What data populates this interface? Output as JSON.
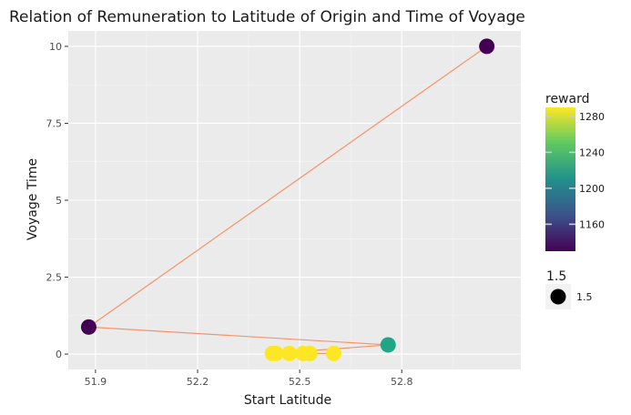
{
  "chart_data": {
    "type": "scatter",
    "title": "Relation of Remuneration to Latitude of Origin and Time of Voyage",
    "xlabel": "Start Latitude",
    "ylabel": "Voyage Time",
    "xlim": [
      51.82,
      53.15
    ],
    "ylim": [
      -0.5,
      10.5
    ],
    "x_ticks": [
      51.9,
      52.2,
      52.5,
      52.8
    ],
    "x_tick_labels": [
      "51.9",
      "52.2",
      "52.5",
      "52.8"
    ],
    "y_ticks": [
      0,
      2.5,
      5,
      7.5,
      10
    ],
    "y_tick_labels": [
      "0",
      "2.5",
      "5",
      "7.5",
      "10"
    ],
    "grid": true,
    "path_color": "#f4946c",
    "points": [
      {
        "x": 53.05,
        "y": 10.0,
        "reward": 1135,
        "color": "#440154"
      },
      {
        "x": 51.88,
        "y": 0.88,
        "reward": 1138,
        "color": "#440154"
      },
      {
        "x": 52.76,
        "y": 0.3,
        "reward": 1242,
        "color": "#21a685"
      },
      {
        "x": 52.42,
        "y": 0.02,
        "reward": 1285,
        "color": "#fde725"
      },
      {
        "x": 52.47,
        "y": 0.02,
        "reward": 1285,
        "color": "#fde725"
      },
      {
        "x": 52.51,
        "y": 0.02,
        "reward": 1285,
        "color": "#fde725"
      },
      {
        "x": 52.53,
        "y": 0.02,
        "reward": 1285,
        "color": "#fde725"
      },
      {
        "x": 52.6,
        "y": 0.02,
        "reward": 1285,
        "color": "#fde725"
      },
      {
        "x": 52.43,
        "y": 0.02,
        "reward": 1285,
        "color": "#fde725"
      }
    ],
    "color_legend": {
      "title": "reward",
      "min": 1130,
      "max": 1290,
      "ticks": [
        1160,
        1200,
        1240,
        1280
      ],
      "tick_labels": [
        "1160",
        "1200",
        "1240",
        "1280"
      ],
      "placement": "right",
      "stops": [
        "#440154",
        "#3b528b",
        "#21918c",
        "#5ec962",
        "#fde725"
      ]
    },
    "size_legend": {
      "title": "1.5",
      "label": "1.5",
      "placement": "right"
    }
  }
}
